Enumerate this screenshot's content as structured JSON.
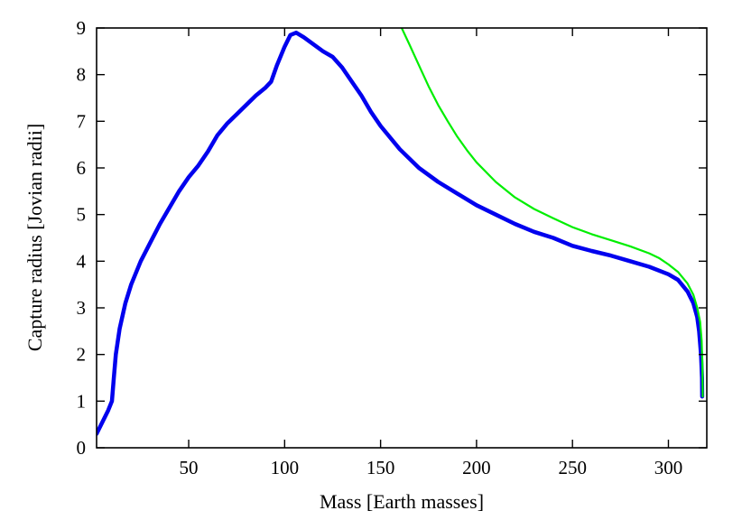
{
  "chart_data": {
    "type": "line",
    "title": "",
    "xlabel": "Mass [Earth masses]",
    "ylabel": "Capture radius [Jovian radii]",
    "xlim": [
      2,
      320
    ],
    "ylim": [
      0,
      9
    ],
    "x_ticks": [
      50,
      100,
      150,
      200,
      250,
      300
    ],
    "y_ticks": [
      0,
      1,
      2,
      3,
      4,
      5,
      6,
      7,
      8,
      9
    ],
    "grid": false,
    "legend": "none",
    "series": [
      {
        "color": "#0000ee",
        "points": [
          [
            2,
            0.3
          ],
          [
            5,
            0.55
          ],
          [
            8,
            0.8
          ],
          [
            10,
            1.0
          ],
          [
            11,
            1.5
          ],
          [
            12,
            2.0
          ],
          [
            14,
            2.55
          ],
          [
            17,
            3.1
          ],
          [
            20,
            3.5
          ],
          [
            25,
            4.0
          ],
          [
            30,
            4.4
          ],
          [
            35,
            4.8
          ],
          [
            40,
            5.15
          ],
          [
            45,
            5.5
          ],
          [
            50,
            5.8
          ],
          [
            55,
            6.05
          ],
          [
            60,
            6.35
          ],
          [
            65,
            6.7
          ],
          [
            70,
            6.95
          ],
          [
            75,
            7.15
          ],
          [
            80,
            7.35
          ],
          [
            85,
            7.55
          ],
          [
            90,
            7.72
          ],
          [
            93,
            7.85
          ],
          [
            96,
            8.2
          ],
          [
            100,
            8.6
          ],
          [
            103,
            8.85
          ],
          [
            106,
            8.9
          ],
          [
            110,
            8.8
          ],
          [
            115,
            8.65
          ],
          [
            120,
            8.5
          ],
          [
            125,
            8.38
          ],
          [
            130,
            8.15
          ],
          [
            135,
            7.85
          ],
          [
            140,
            7.55
          ],
          [
            145,
            7.2
          ],
          [
            150,
            6.9
          ],
          [
            160,
            6.4
          ],
          [
            170,
            6.0
          ],
          [
            180,
            5.7
          ],
          [
            190,
            5.45
          ],
          [
            200,
            5.2
          ],
          [
            210,
            5.0
          ],
          [
            220,
            4.8
          ],
          [
            230,
            4.63
          ],
          [
            240,
            4.5
          ],
          [
            250,
            4.33
          ],
          [
            260,
            4.22
          ],
          [
            270,
            4.12
          ],
          [
            280,
            4.0
          ],
          [
            290,
            3.88
          ],
          [
            300,
            3.72
          ],
          [
            305,
            3.6
          ],
          [
            310,
            3.35
          ],
          [
            313,
            3.1
          ],
          [
            315,
            2.8
          ],
          [
            316,
            2.5
          ],
          [
            317,
            2.0
          ],
          [
            317.5,
            1.5
          ],
          [
            317.6,
            1.1
          ]
        ]
      },
      {
        "color": "#00ee00",
        "points": [
          [
            161,
            9.0
          ],
          [
            165,
            8.65
          ],
          [
            170,
            8.2
          ],
          [
            175,
            7.75
          ],
          [
            180,
            7.35
          ],
          [
            185,
            7.0
          ],
          [
            190,
            6.67
          ],
          [
            195,
            6.38
          ],
          [
            200,
            6.12
          ],
          [
            210,
            5.7
          ],
          [
            220,
            5.37
          ],
          [
            230,
            5.12
          ],
          [
            240,
            4.92
          ],
          [
            250,
            4.73
          ],
          [
            260,
            4.58
          ],
          [
            270,
            4.45
          ],
          [
            280,
            4.32
          ],
          [
            290,
            4.17
          ],
          [
            295,
            4.07
          ],
          [
            300,
            3.93
          ],
          [
            305,
            3.77
          ],
          [
            310,
            3.52
          ],
          [
            313,
            3.28
          ],
          [
            315,
            3.0
          ],
          [
            316.5,
            2.7
          ],
          [
            317.3,
            2.3
          ],
          [
            317.7,
            1.8
          ],
          [
            317.9,
            1.1
          ]
        ]
      }
    ]
  }
}
